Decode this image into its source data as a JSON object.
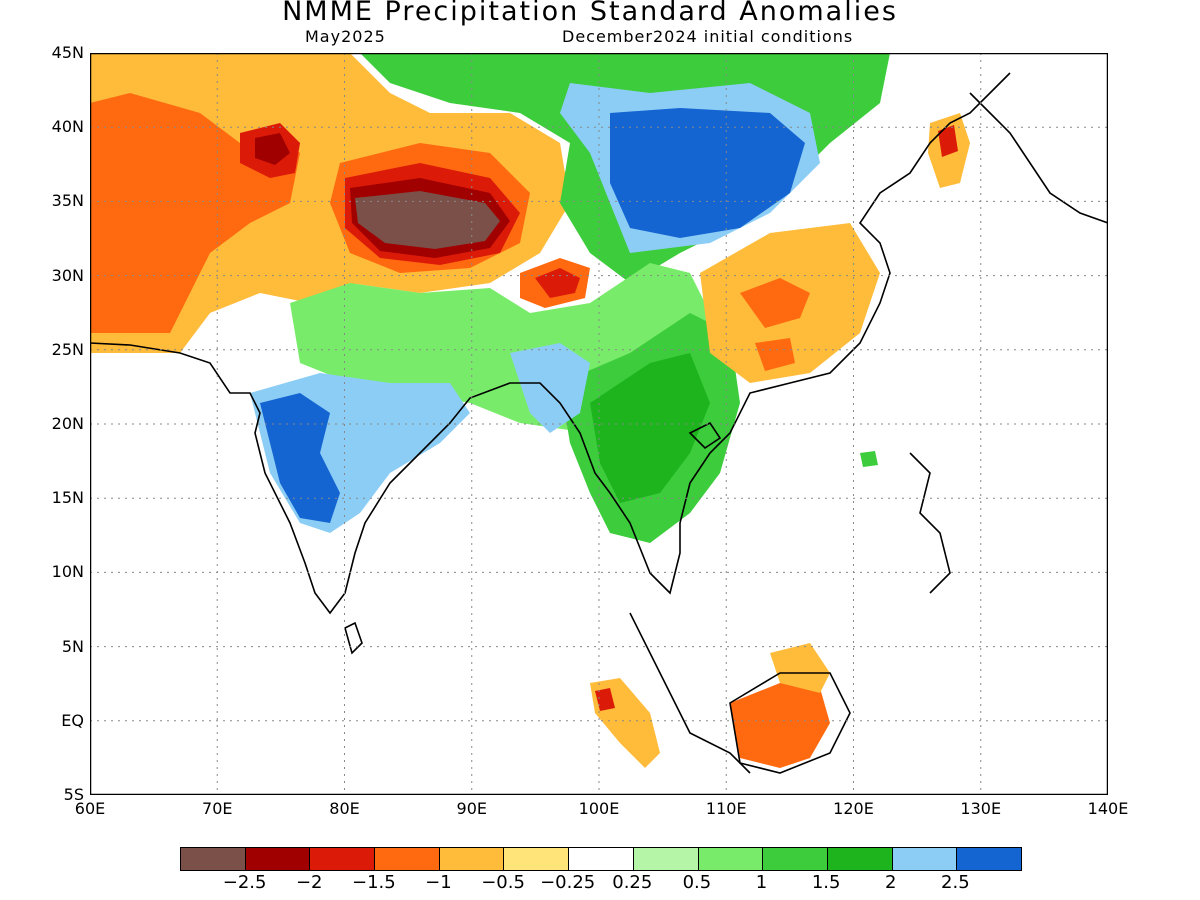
{
  "header": {
    "title": "NMME Precipitation Standard Anomalies",
    "valid_month": "May2025",
    "initial_conditions": "December2024 initial conditions"
  },
  "map": {
    "lon_range": [
      60,
      140
    ],
    "lat_range": [
      -5,
      45
    ],
    "x_ticks": [
      "60E",
      "70E",
      "80E",
      "90E",
      "100E",
      "110E",
      "120E",
      "130E",
      "140E"
    ],
    "y_ticks": [
      "45N",
      "40N",
      "35N",
      "30N",
      "25N",
      "20N",
      "15N",
      "10N",
      "5N",
      "EQ",
      "5S"
    ],
    "grid": "dotted",
    "fill_colors": {
      "land_dry_extreme": "#7b5048",
      "dry_2": "#a00000",
      "dry_1_5": "#dc1a08",
      "dry_1": "#ff6a10",
      "dry_0_5": "#ffbb3a",
      "dry_0_25": "#ffe47a",
      "neutral": "#ffffff",
      "wet_0_25": "#b4f5a8",
      "wet_0_5": "#78ec6a",
      "wet_1": "#3ccc3c",
      "wet_1_5": "#1eb41e",
      "wet_2": "#8ccdf5",
      "wet_2_5": "#1464d2"
    }
  },
  "colorbar": {
    "colors": [
      "#7b5048",
      "#a00000",
      "#dc1a08",
      "#ff6a10",
      "#ffbb3a",
      "#ffe47a",
      "#ffffff",
      "#b4f5a8",
      "#78ec6a",
      "#3ccc3c",
      "#1eb41e",
      "#8ccdf5",
      "#1464d2"
    ],
    "labels": [
      "−2.5",
      "−2",
      "−1.5",
      "−1",
      "−0.5",
      "−0.25",
      "0.25",
      "0.5",
      "1",
      "1.5",
      "2",
      "2.5"
    ]
  }
}
